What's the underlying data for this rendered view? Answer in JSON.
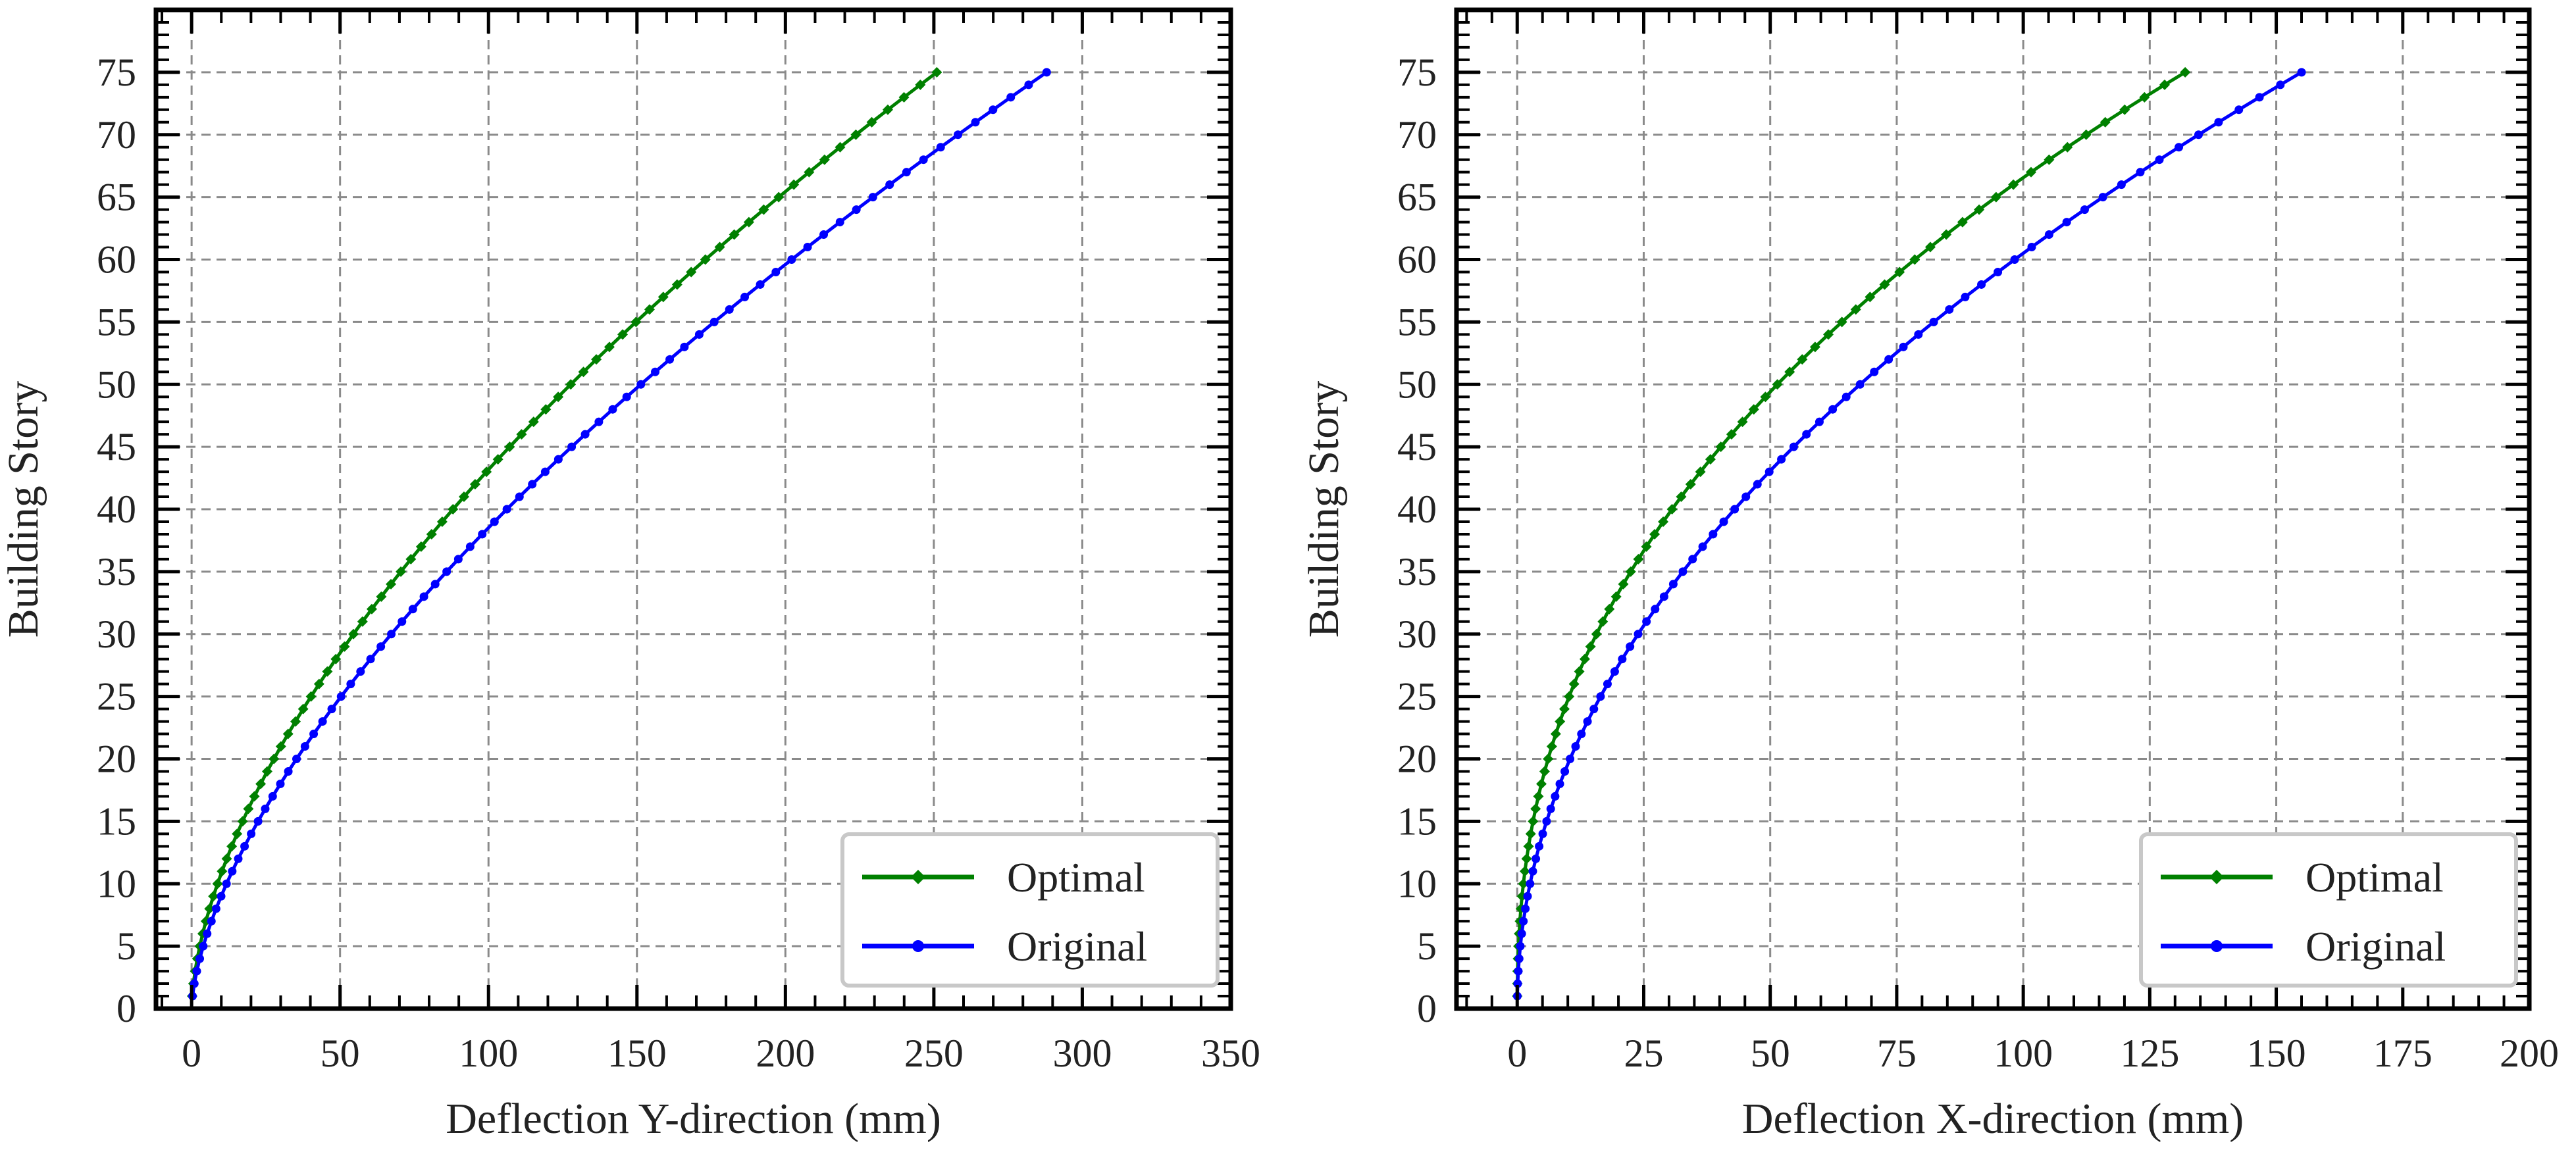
{
  "figure": {
    "charts": [
      {
        "title": "",
        "xlabel": "Deflection Y-direction (mm)",
        "ylabel": "Building Story",
        "xlim": [
          -12,
          350
        ],
        "ylim": [
          0,
          80
        ],
        "xticks": [
          "0",
          "50",
          "100",
          "150",
          "200",
          "250",
          "300",
          "350"
        ],
        "yticks": [
          "0",
          "5",
          "10",
          "15",
          "20",
          "25",
          "30",
          "35",
          "40",
          "45",
          "50",
          "55",
          "60",
          "65",
          "70",
          "75"
        ],
        "legend": [
          {
            "label": "Optimal",
            "color": "#008000"
          },
          {
            "label": "Original",
            "color": "#0000ff"
          }
        ]
      },
      {
        "title": "",
        "xlabel": "Deflection X-direction (mm)",
        "ylabel": "Building Story",
        "xlim": [
          -12,
          200
        ],
        "ylim": [
          0,
          80
        ],
        "xticks": [
          "0",
          "25",
          "50",
          "75",
          "100",
          "125",
          "150",
          "175",
          "200"
        ],
        "yticks": [
          "0",
          "5",
          "10",
          "15",
          "20",
          "25",
          "30",
          "35",
          "40",
          "45",
          "50",
          "55",
          "60",
          "65",
          "70",
          "75"
        ],
        "legend": [
          {
            "label": "Optimal",
            "color": "#008000"
          },
          {
            "label": "Original",
            "color": "#0000ff"
          }
        ]
      }
    ]
  },
  "chart_data": [
    {
      "type": "line",
      "title": "",
      "xlabel": "Deflection Y-direction (mm)",
      "ylabel": "Building Story",
      "xlim": [
        -12,
        350
      ],
      "ylim": [
        0,
        80
      ],
      "grid": true,
      "legend_position": "bottom-right",
      "series": [
        {
          "name": "Optimal",
          "color": "#008000",
          "marker": "diamond",
          "story_range": [
            1,
            75
          ],
          "max_deflection": 251,
          "profile_exponent": 0.6
        },
        {
          "name": "Original",
          "color": "#0000ff",
          "marker": "circle",
          "story_range": [
            1,
            75
          ],
          "max_deflection": 288,
          "profile_exponent": 0.63
        }
      ]
    },
    {
      "type": "line",
      "title": "",
      "xlabel": "Deflection X-direction (mm)",
      "ylabel": "Building Story",
      "xlim": [
        -12,
        200
      ],
      "ylim": [
        0,
        80
      ],
      "grid": true,
      "legend_position": "bottom-right",
      "series": [
        {
          "name": "Optimal",
          "color": "#008000",
          "marker": "diamond",
          "story_range": [
            1,
            75
          ],
          "max_deflection": 132,
          "profile_exponent": 0.43
        },
        {
          "name": "Original",
          "color": "#0000ff",
          "marker": "circle",
          "story_range": [
            1,
            75
          ],
          "max_deflection": 155,
          "profile_exponent": 0.49
        }
      ]
    }
  ]
}
